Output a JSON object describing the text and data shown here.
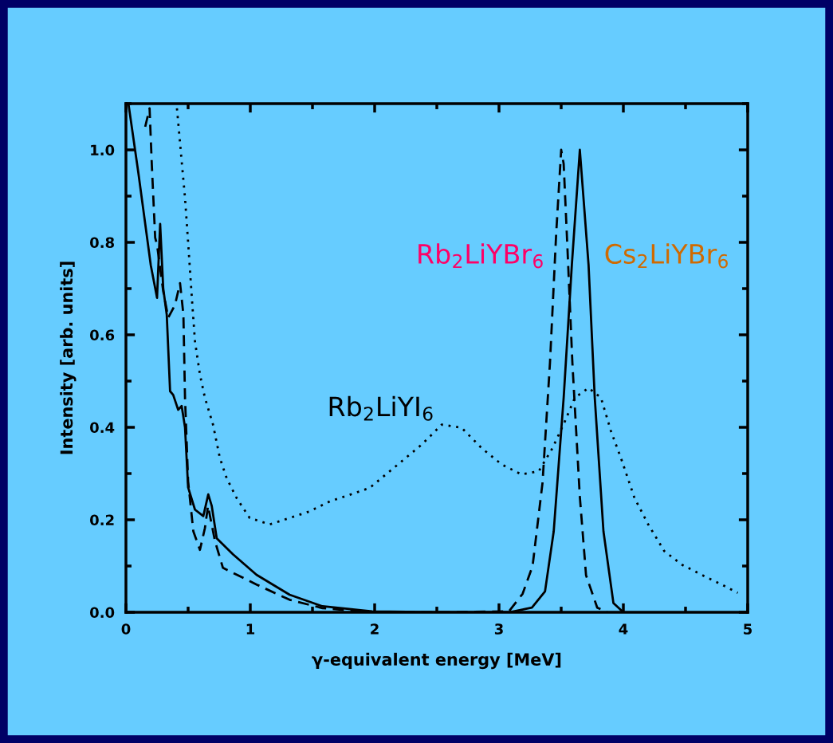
{
  "chart_data": {
    "type": "line",
    "xlabel": "γ-equivalent energy [MeV]",
    "ylabel": "Intensity [arb. units]",
    "xlim": [
      0,
      5
    ],
    "ylim": [
      0,
      1.1
    ],
    "xticks": [
      0,
      1,
      2,
      3,
      4,
      5
    ],
    "yticks": [
      {
        "value": 0,
        "label": "0.0"
      },
      {
        "value": 0.2,
        "label": "0.2"
      },
      {
        "value": 0.4,
        "label": "0.4"
      },
      {
        "value": 0.6,
        "label": "0.6"
      },
      {
        "value": 0.8,
        "label": "0.8"
      },
      {
        "value": 1.0,
        "label": "1.0"
      }
    ],
    "grid": false,
    "marker": "none",
    "series": [
      {
        "name": "Cs$_{2}$LiYBr$_{6}$",
        "color": "#000000",
        "line_style": "solid",
        "x": [
          0.02,
          0.1,
          0.2,
          0.25,
          0.275,
          0.3,
          0.328,
          0.355,
          0.38,
          0.42,
          0.448,
          0.475,
          0.5,
          0.555,
          0.622,
          0.662,
          0.69,
          0.73,
          0.862,
          1.05,
          1.316,
          1.58,
          1.98,
          2.5,
          3.08,
          3.265,
          3.37,
          3.44,
          3.52,
          3.586,
          3.65,
          3.72,
          3.77,
          3.84,
          3.92,
          4.0
        ],
        "values": [
          1.1,
          0.95,
          0.75,
          0.68,
          0.84,
          0.7,
          0.644,
          0.478,
          0.47,
          0.438,
          0.446,
          0.4,
          0.27,
          0.222,
          0.208,
          0.255,
          0.23,
          0.16,
          0.125,
          0.081,
          0.038,
          0.013,
          0.002,
          0.0,
          0.0,
          0.01,
          0.045,
          0.175,
          0.464,
          0.752,
          1.0,
          0.752,
          0.464,
          0.175,
          0.02,
          0.0
        ]
      },
      {
        "name": "Rb$_{2}$LiYBr$_{6}$",
        "color": "#000000",
        "line_style": "dashed",
        "x": [
          0.155,
          0.19,
          0.208,
          0.235,
          0.25,
          0.3,
          0.34,
          0.395,
          0.435,
          0.462,
          0.475,
          0.5,
          0.542,
          0.595,
          0.635,
          0.66,
          0.716,
          0.78,
          1.05,
          1.316,
          1.58,
          1.98,
          2.5,
          3.08,
          3.19,
          3.27,
          3.35,
          3.41,
          3.46,
          3.5,
          3.52,
          3.55,
          3.59,
          3.65,
          3.7,
          3.79,
          3.87
        ],
        "values": [
          1.05,
          1.09,
          0.968,
          0.81,
          0.795,
          0.694,
          0.637,
          0.665,
          0.712,
          0.644,
          0.464,
          0.283,
          0.175,
          0.135,
          0.182,
          0.23,
          0.154,
          0.096,
          0.06,
          0.027,
          0.009,
          0.0,
          0.0,
          0.002,
          0.04,
          0.1,
          0.28,
          0.54,
          0.82,
          1.0,
          0.97,
          0.79,
          0.54,
          0.25,
          0.08,
          0.01,
          0.0
        ]
      },
      {
        "name": "Rb$_{2}$LiYI$_{6}$",
        "color": "#000000",
        "line_style": "dotted",
        "x": [
          0.41,
          0.45,
          0.475,
          0.5,
          0.53,
          0.555,
          0.595,
          0.635,
          0.7,
          0.755,
          0.81,
          0.89,
          0.995,
          1.156,
          1.316,
          1.476,
          1.64,
          1.8,
          1.96,
          2.09,
          2.22,
          2.38,
          2.54,
          2.7,
          2.86,
          3.02,
          3.18,
          3.32,
          3.43,
          3.53,
          3.61,
          3.72,
          3.82,
          3.9,
          3.98,
          4.09,
          4.2,
          4.33,
          4.47,
          4.63,
          4.79,
          4.92
        ],
        "values": [
          1.09,
          0.97,
          0.896,
          0.8,
          0.68,
          0.586,
          0.514,
          0.464,
          0.406,
          0.334,
          0.29,
          0.247,
          0.204,
          0.19,
          0.204,
          0.218,
          0.24,
          0.254,
          0.269,
          0.298,
          0.327,
          0.363,
          0.406,
          0.399,
          0.355,
          0.32,
          0.298,
          0.305,
          0.355,
          0.413,
          0.464,
          0.485,
          0.464,
          0.392,
          0.334,
          0.247,
          0.19,
          0.132,
          0.103,
          0.081,
          0.06,
          0.042
        ]
      }
    ]
  }
}
